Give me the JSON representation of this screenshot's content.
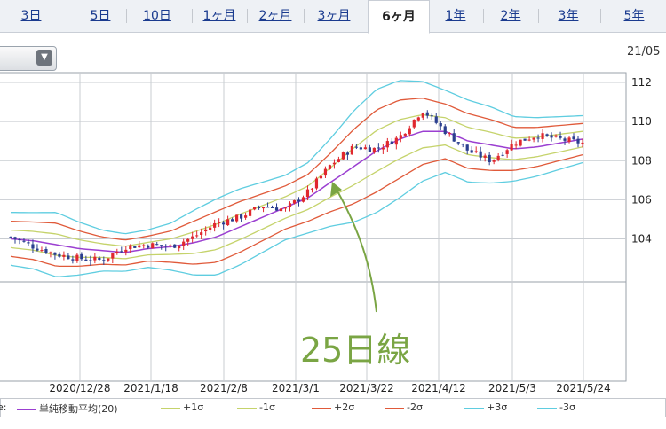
{
  "tabs": [
    {
      "label": "3日",
      "active": false
    },
    {
      "label": "5日",
      "active": false
    },
    {
      "label": "10日",
      "active": false
    },
    {
      "label": "1ヶ月",
      "active": false
    },
    {
      "label": "2ヶ月",
      "active": false
    },
    {
      "label": "3ヶ月",
      "active": false
    },
    {
      "label": "6ヶ月",
      "active": true
    },
    {
      "label": "1年",
      "active": false
    },
    {
      "label": "2年",
      "active": false
    },
    {
      "label": "3年",
      "active": false
    },
    {
      "label": "5年",
      "active": false
    }
  ],
  "header": {
    "date_fragment": "21/05",
    "select_icon": "chevron-down-icon"
  },
  "annotation": {
    "text": "25日線",
    "color": "#7aa544"
  },
  "colors": {
    "up": "#e0282f",
    "down": "#2b3f8f",
    "sma": "#9b3fd1",
    "s1": "#c5d36b",
    "s2": "#e05a3a",
    "s3": "#5fcde0"
  },
  "chart_data": {
    "type": "candlestick",
    "x_ticks": [
      "2020/12/28",
      "2021/1/18",
      "2021/2/8",
      "2021/3/1",
      "2021/3/22",
      "2021/4/12",
      "2021/5/3",
      "2021/5/24"
    ],
    "y_ticks": [
      104,
      106,
      108,
      110,
      112
    ],
    "ylim": [
      101.8,
      112.5
    ],
    "legend_prefix": "e:",
    "legend": [
      {
        "label": "単純移動平均(20)",
        "color": "#9b3fd1"
      },
      {
        "label": "+1σ",
        "color": "#c5d36b"
      },
      {
        "label": "-1σ",
        "color": "#c5d36b"
      },
      {
        "label": "+2σ",
        "color": "#e05a3a"
      },
      {
        "label": "-2σ",
        "color": "#e05a3a"
      },
      {
        "label": "+3σ",
        "color": "#5fcde0"
      },
      {
        "label": "-3σ",
        "color": "#5fcde0"
      }
    ],
    "sma": [
      104.0,
      103.9,
      103.7,
      103.5,
      103.4,
      103.3,
      103.5,
      103.6,
      103.8,
      104.1,
      104.6,
      105.1,
      105.6,
      106.1,
      106.9,
      107.7,
      108.5,
      109.1,
      109.5,
      109.5,
      109.0,
      108.8,
      108.6,
      108.7,
      108.9,
      109.1
    ],
    "sd": [
      0.45,
      0.48,
      0.55,
      0.45,
      0.35,
      0.32,
      0.32,
      0.4,
      0.55,
      0.65,
      0.65,
      0.6,
      0.55,
      0.6,
      0.75,
      0.95,
      1.05,
      1.0,
      0.85,
      0.7,
      0.7,
      0.65,
      0.55,
      0.5,
      0.45,
      0.4
    ],
    "price": [
      104.1,
      103.6,
      103.2,
      103.0,
      102.9,
      103.6,
      103.7,
      103.6,
      104.1,
      104.8,
      105.1,
      105.7,
      105.5,
      106.4,
      107.8,
      108.7,
      108.6,
      109.2,
      110.6,
      109.5,
      108.5,
      108.0,
      108.9,
      109.3,
      109.1,
      108.9
    ]
  }
}
